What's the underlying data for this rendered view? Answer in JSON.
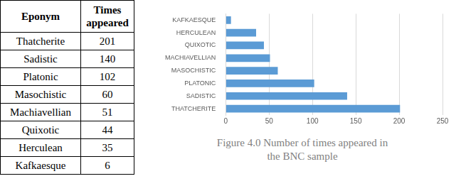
{
  "table": {
    "header": [
      "Eponym",
      "Times appeared"
    ],
    "rows": [
      [
        "Thatcherite",
        201
      ],
      [
        "Sadistic",
        140
      ],
      [
        "Platonic",
        102
      ],
      [
        "Masochistic",
        60
      ],
      [
        "Machiavellian",
        51
      ],
      [
        "Quixotic",
        44
      ],
      [
        "Herculean",
        35
      ],
      [
        "Kafkaesque",
        6
      ]
    ]
  },
  "chart_data": {
    "type": "bar",
    "orientation": "horizontal",
    "title": "Figure 4.0 Number of times appeared in the BNC sample",
    "categories": [
      "KAFKAESQUE",
      "HERCULEAN",
      "QUIXOTIC",
      "MACHIAVELLIAN",
      "MASOCHISTIC",
      "PLATONIC",
      "SADISTIC",
      "THATCHERITE"
    ],
    "values": [
      6,
      35,
      44,
      51,
      60,
      102,
      140,
      201
    ],
    "color": "#5b9bd5",
    "xlim": [
      0,
      250
    ],
    "xticks": [
      0,
      50,
      100,
      150,
      200,
      250
    ],
    "grid": true
  }
}
